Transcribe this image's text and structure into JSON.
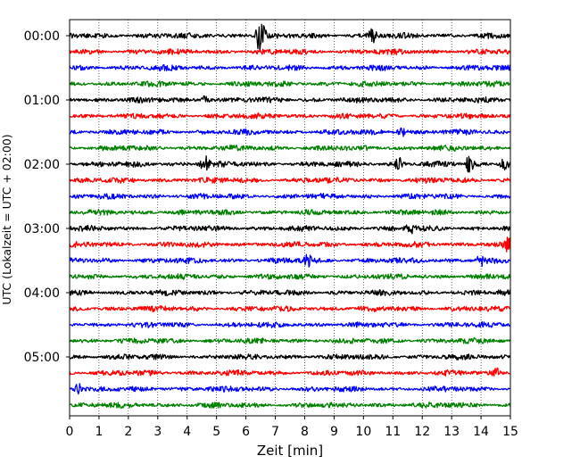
{
  "chart_data": {
    "type": "line",
    "xlabel": "Zeit  [min]",
    "ylabel": "UTC (Lokalzeit = UTC + 02:00)",
    "xlim": [
      0,
      15
    ],
    "x_ticks": [
      "0",
      "1",
      "2",
      "3",
      "4",
      "5",
      "6",
      "7",
      "8",
      "9",
      "10",
      "11",
      "12",
      "13",
      "14",
      "15"
    ],
    "y_ticks": [
      "00:00",
      "01:00",
      "02:00",
      "03:00",
      "04:00",
      "05:00"
    ],
    "grid": "vertical-dotted",
    "trace_interval_min": 15,
    "series": [
      {
        "start": "00:00",
        "color": "#000000"
      },
      {
        "start": "00:15",
        "color": "#ff0000"
      },
      {
        "start": "00:30",
        "color": "#0000ff"
      },
      {
        "start": "00:45",
        "color": "#008000"
      },
      {
        "start": "01:00",
        "color": "#000000"
      },
      {
        "start": "01:15",
        "color": "#ff0000"
      },
      {
        "start": "01:30",
        "color": "#0000ff"
      },
      {
        "start": "01:45",
        "color": "#008000"
      },
      {
        "start": "02:00",
        "color": "#000000"
      },
      {
        "start": "02:15",
        "color": "#ff0000"
      },
      {
        "start": "02:30",
        "color": "#0000ff"
      },
      {
        "start": "02:45",
        "color": "#008000"
      },
      {
        "start": "03:00",
        "color": "#000000"
      },
      {
        "start": "03:15",
        "color": "#ff0000"
      },
      {
        "start": "03:30",
        "color": "#0000ff"
      },
      {
        "start": "03:45",
        "color": "#008000"
      },
      {
        "start": "04:00",
        "color": "#000000"
      },
      {
        "start": "04:15",
        "color": "#ff0000"
      },
      {
        "start": "04:30",
        "color": "#0000ff"
      },
      {
        "start": "04:45",
        "color": "#008000"
      },
      {
        "start": "05:00",
        "color": "#000000"
      },
      {
        "start": "05:15",
        "color": "#ff0000"
      },
      {
        "start": "05:30",
        "color": "#0000ff"
      },
      {
        "start": "05:45",
        "color": "#008000"
      }
    ],
    "events": [
      {
        "trace": 0,
        "at_min": 6.5,
        "amplitude": 2.2
      },
      {
        "trace": 0,
        "at_min": 10.3,
        "amplitude": 0.7
      },
      {
        "trace": 8,
        "at_min": 4.6,
        "amplitude": 0.9
      },
      {
        "trace": 8,
        "at_min": 11.2,
        "amplitude": 0.7
      },
      {
        "trace": 8,
        "at_min": 13.6,
        "amplitude": 0.8
      },
      {
        "trace": 8,
        "at_min": 14.8,
        "amplitude": 0.7
      },
      {
        "trace": 14,
        "at_min": 8.1,
        "amplitude": 0.6
      },
      {
        "trace": 14,
        "at_min": 14.0,
        "amplitude": 0.6
      },
      {
        "trace": 13,
        "at_min": 14.9,
        "amplitude": 0.6
      },
      {
        "trace": 4,
        "at_min": 4.6,
        "amplitude": 0.5
      },
      {
        "trace": 6,
        "at_min": 11.3,
        "amplitude": 0.5
      },
      {
        "trace": 22,
        "at_min": 0.3,
        "amplitude": 0.6
      },
      {
        "trace": 12,
        "at_min": 11.6,
        "amplitude": 0.5
      },
      {
        "trace": 21,
        "at_min": 14.5,
        "amplitude": 0.5
      }
    ]
  }
}
